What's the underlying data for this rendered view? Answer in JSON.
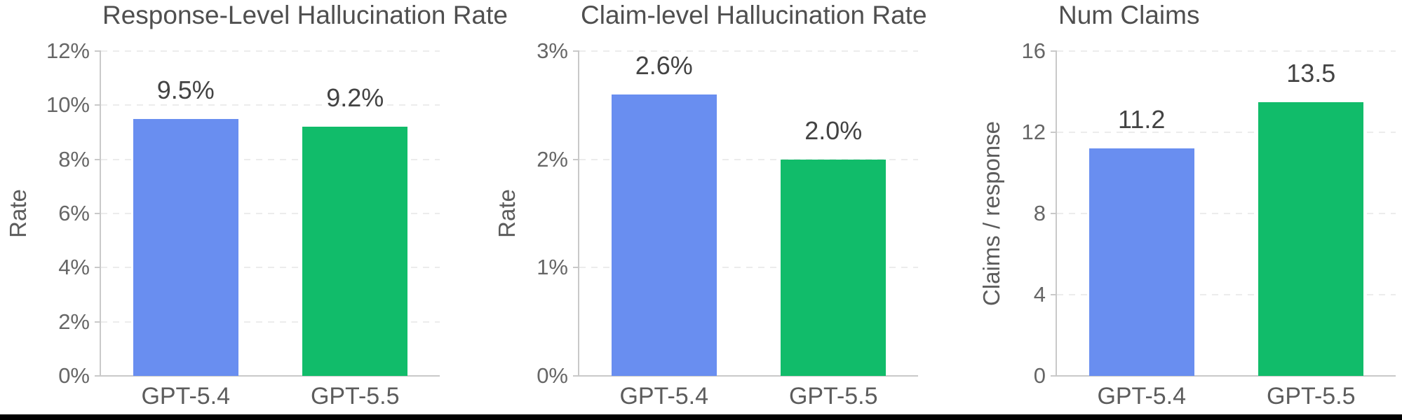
{
  "figure": {
    "background": "#ffffff",
    "bottom_border_color": "#000000"
  },
  "palette": {
    "gpt_5_4_bar": "#698EF0",
    "gpt_5_5_bar": "#11BC6A",
    "axis_line": "#c9c9c9",
    "gridline": "#ececec",
    "title_text": "#4f4f4f",
    "tick_text": "#666666",
    "value_text": "#434343"
  },
  "chart_data": [
    {
      "type": "bar",
      "title": "Response-Level Hallucination Rate",
      "ylabel": "Rate",
      "xlabel": "",
      "categories": [
        "GPT-5.4",
        "GPT-5.5"
      ],
      "values": [
        9.5,
        9.2
      ],
      "value_labels": [
        "9.5%",
        "9.2%"
      ],
      "ylim": [
        0,
        12
      ],
      "yticks": [
        0,
        2,
        4,
        6,
        8,
        10,
        12
      ],
      "ytick_labels": [
        "0%",
        "2%",
        "4%",
        "6%",
        "8%",
        "10%",
        "12%"
      ],
      "bar_colors": [
        "#698EF0",
        "#11BC6A"
      ],
      "grid": "horizontal-dashed",
      "legend": "none"
    },
    {
      "type": "bar",
      "title": "Claim-level Hallucination Rate",
      "ylabel": "Rate",
      "xlabel": "",
      "categories": [
        "GPT-5.4",
        "GPT-5.5"
      ],
      "values": [
        2.6,
        2.0
      ],
      "value_labels": [
        "2.6%",
        "2.0%"
      ],
      "ylim": [
        0,
        3
      ],
      "yticks": [
        0,
        1,
        2,
        3
      ],
      "ytick_labels": [
        "0%",
        "1%",
        "2%",
        "3%"
      ],
      "bar_colors": [
        "#698EF0",
        "#11BC6A"
      ],
      "grid": "horizontal-dashed",
      "legend": "none"
    },
    {
      "type": "bar",
      "title": "Num Claims",
      "ylabel": "Claims / response",
      "xlabel": "",
      "categories": [
        "GPT-5.4",
        "GPT-5.5"
      ],
      "values": [
        11.2,
        13.5
      ],
      "value_labels": [
        "11.2",
        "13.5"
      ],
      "ylim": [
        0,
        16
      ],
      "yticks": [
        0,
        4,
        8,
        12,
        16
      ],
      "ytick_labels": [
        "0",
        "4",
        "8",
        "12",
        "16"
      ],
      "bar_colors": [
        "#698EF0",
        "#11BC6A"
      ],
      "grid": "horizontal-dashed",
      "legend": "none"
    }
  ]
}
